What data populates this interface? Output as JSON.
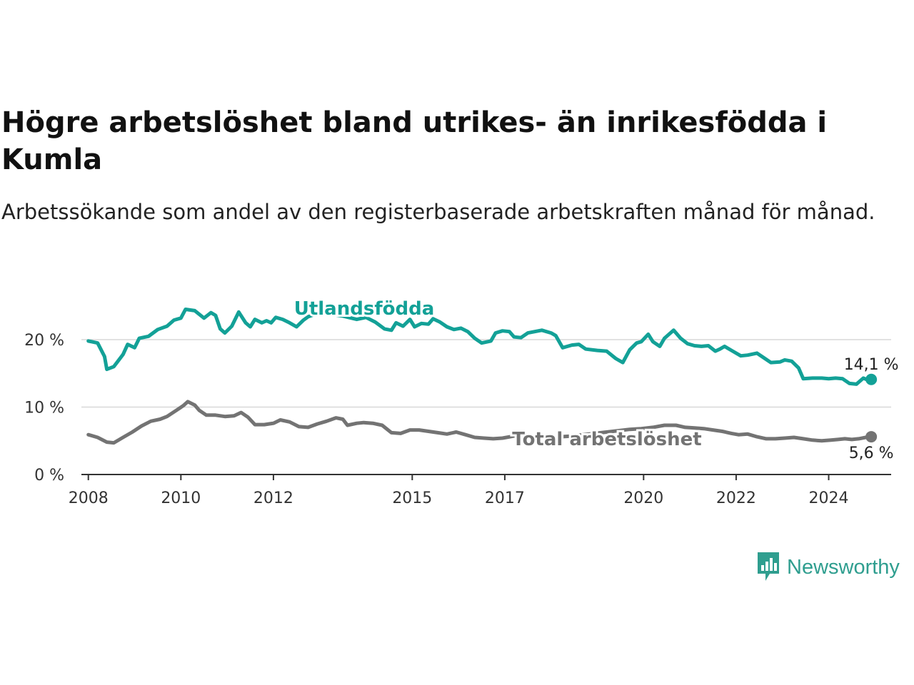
{
  "title": "Högre arbetslöshet bland utrikes- än inrikesfödda i Kumla",
  "subtitle": "Arbetssökande som andel av den registerbaserade arbetskraften månad för månad.",
  "brand": {
    "name": "Newsworthy",
    "icon": "newsworthy-logo-icon",
    "color": "#2f9e8f"
  },
  "chart_data": {
    "type": "line",
    "y_ticks": [
      "0 %",
      "10 %",
      "20 %"
    ],
    "y_tick_values": [
      0,
      10,
      20
    ],
    "ylim": [
      0,
      27
    ],
    "xlim": [
      2007.85,
      2025.35
    ],
    "x_ticks": [
      "2008",
      "2010",
      "2012",
      "2015",
      "2017",
      "2020",
      "2022",
      "2024"
    ],
    "x_tick_values": [
      2008,
      2010,
      2012,
      2015,
      2017,
      2020,
      2022,
      2024
    ],
    "grid": "horizontal",
    "series": [
      {
        "name": "Utlandsfödda",
        "color": "#13a197",
        "end_label": "14,1 %",
        "points": [
          [
            2008.0,
            19.8
          ],
          [
            2008.2,
            19.5
          ],
          [
            2008.35,
            17.5
          ],
          [
            2008.4,
            15.6
          ],
          [
            2008.55,
            16.0
          ],
          [
            2008.75,
            17.8
          ],
          [
            2008.85,
            19.3
          ],
          [
            2009.0,
            18.8
          ],
          [
            2009.1,
            20.2
          ],
          [
            2009.3,
            20.5
          ],
          [
            2009.5,
            21.5
          ],
          [
            2009.7,
            22.0
          ],
          [
            2009.85,
            22.9
          ],
          [
            2010.0,
            23.2
          ],
          [
            2010.1,
            24.5
          ],
          [
            2010.3,
            24.3
          ],
          [
            2010.5,
            23.2
          ],
          [
            2010.65,
            24.0
          ],
          [
            2010.75,
            23.6
          ],
          [
            2010.85,
            21.6
          ],
          [
            2010.95,
            21.0
          ],
          [
            2011.1,
            22.0
          ],
          [
            2011.25,
            24.1
          ],
          [
            2011.4,
            22.5
          ],
          [
            2011.5,
            21.9
          ],
          [
            2011.6,
            23.0
          ],
          [
            2011.75,
            22.5
          ],
          [
            2011.85,
            22.8
          ],
          [
            2011.95,
            22.5
          ],
          [
            2012.05,
            23.3
          ],
          [
            2012.2,
            23.0
          ],
          [
            2012.35,
            22.5
          ],
          [
            2012.5,
            21.9
          ],
          [
            2012.65,
            22.9
          ],
          [
            2012.75,
            23.4
          ],
          [
            2013.0,
            24.0
          ],
          [
            2013.5,
            23.5
          ],
          [
            2013.8,
            23.0
          ],
          [
            2014.0,
            23.3
          ],
          [
            2014.2,
            22.6
          ],
          [
            2014.4,
            21.6
          ],
          [
            2014.55,
            21.4
          ],
          [
            2014.65,
            22.5
          ],
          [
            2014.8,
            22.0
          ],
          [
            2014.95,
            23.0
          ],
          [
            2015.05,
            21.9
          ],
          [
            2015.2,
            22.4
          ],
          [
            2015.35,
            22.3
          ],
          [
            2015.45,
            23.1
          ],
          [
            2015.6,
            22.6
          ],
          [
            2015.75,
            21.9
          ],
          [
            2015.9,
            21.5
          ],
          [
            2016.05,
            21.7
          ],
          [
            2016.2,
            21.2
          ],
          [
            2016.35,
            20.2
          ],
          [
            2016.5,
            19.5
          ],
          [
            2016.7,
            19.8
          ],
          [
            2016.8,
            21.0
          ],
          [
            2016.95,
            21.3
          ],
          [
            2017.1,
            21.2
          ],
          [
            2017.2,
            20.4
          ],
          [
            2017.35,
            20.3
          ],
          [
            2017.5,
            21.0
          ],
          [
            2017.65,
            21.2
          ],
          [
            2017.8,
            21.4
          ],
          [
            2018.0,
            21.0
          ],
          [
            2018.1,
            20.6
          ],
          [
            2018.25,
            18.8
          ],
          [
            2018.45,
            19.2
          ],
          [
            2018.6,
            19.3
          ],
          [
            2018.75,
            18.6
          ],
          [
            2019.0,
            18.4
          ],
          [
            2019.2,
            18.3
          ],
          [
            2019.4,
            17.2
          ],
          [
            2019.55,
            16.6
          ],
          [
            2019.7,
            18.5
          ],
          [
            2019.85,
            19.5
          ],
          [
            2019.95,
            19.7
          ],
          [
            2020.1,
            20.8
          ],
          [
            2020.2,
            19.7
          ],
          [
            2020.35,
            19.0
          ],
          [
            2020.45,
            20.2
          ],
          [
            2020.55,
            20.8
          ],
          [
            2020.65,
            21.4
          ],
          [
            2020.8,
            20.2
          ],
          [
            2020.95,
            19.4
          ],
          [
            2021.1,
            19.1
          ],
          [
            2021.25,
            19.0
          ],
          [
            2021.4,
            19.1
          ],
          [
            2021.55,
            18.3
          ],
          [
            2021.65,
            18.6
          ],
          [
            2021.75,
            19.0
          ],
          [
            2021.9,
            18.4
          ],
          [
            2022.1,
            17.6
          ],
          [
            2022.25,
            17.7
          ],
          [
            2022.45,
            18.0
          ],
          [
            2022.6,
            17.3
          ],
          [
            2022.75,
            16.6
          ],
          [
            2022.95,
            16.7
          ],
          [
            2023.05,
            17.0
          ],
          [
            2023.2,
            16.8
          ],
          [
            2023.35,
            15.8
          ],
          [
            2023.45,
            14.2
          ],
          [
            2023.65,
            14.3
          ],
          [
            2023.85,
            14.3
          ],
          [
            2024.0,
            14.2
          ],
          [
            2024.15,
            14.3
          ],
          [
            2024.3,
            14.2
          ],
          [
            2024.45,
            13.5
          ],
          [
            2024.6,
            13.4
          ],
          [
            2024.75,
            14.3
          ],
          [
            2024.85,
            14.0
          ],
          [
            2024.92,
            14.1
          ]
        ]
      },
      {
        "name": "Total arbetslöshet",
        "color": "#737373",
        "end_label": "5,6 %",
        "points": [
          [
            2008.0,
            5.9
          ],
          [
            2008.2,
            5.5
          ],
          [
            2008.4,
            4.8
          ],
          [
            2008.55,
            4.7
          ],
          [
            2008.75,
            5.5
          ],
          [
            2008.95,
            6.3
          ],
          [
            2009.15,
            7.2
          ],
          [
            2009.35,
            7.9
          ],
          [
            2009.55,
            8.2
          ],
          [
            2009.7,
            8.6
          ],
          [
            2009.9,
            9.5
          ],
          [
            2010.05,
            10.2
          ],
          [
            2010.15,
            10.8
          ],
          [
            2010.3,
            10.3
          ],
          [
            2010.4,
            9.5
          ],
          [
            2010.55,
            8.8
          ],
          [
            2010.75,
            8.8
          ],
          [
            2010.95,
            8.6
          ],
          [
            2011.15,
            8.7
          ],
          [
            2011.3,
            9.2
          ],
          [
            2011.45,
            8.5
          ],
          [
            2011.6,
            7.4
          ],
          [
            2011.8,
            7.4
          ],
          [
            2012.0,
            7.6
          ],
          [
            2012.15,
            8.1
          ],
          [
            2012.35,
            7.8
          ],
          [
            2012.55,
            7.1
          ],
          [
            2012.75,
            7.0
          ],
          [
            2012.95,
            7.5
          ],
          [
            2013.15,
            7.9
          ],
          [
            2013.35,
            8.4
          ],
          [
            2013.5,
            8.2
          ],
          [
            2013.6,
            7.3
          ],
          [
            2013.8,
            7.6
          ],
          [
            2013.95,
            7.7
          ],
          [
            2014.15,
            7.6
          ],
          [
            2014.35,
            7.3
          ],
          [
            2014.55,
            6.2
          ],
          [
            2014.75,
            6.1
          ],
          [
            2014.95,
            6.6
          ],
          [
            2015.15,
            6.6
          ],
          [
            2015.35,
            6.4
          ],
          [
            2015.55,
            6.2
          ],
          [
            2015.75,
            6.0
          ],
          [
            2015.95,
            6.3
          ],
          [
            2016.15,
            5.9
          ],
          [
            2016.35,
            5.5
          ],
          [
            2016.55,
            5.4
          ],
          [
            2016.75,
            5.3
          ],
          [
            2016.95,
            5.4
          ],
          [
            2017.2,
            5.7
          ],
          [
            2017.45,
            5.8
          ],
          [
            2017.7,
            5.6
          ],
          [
            2017.95,
            5.5
          ],
          [
            2018.2,
            5.6
          ],
          [
            2018.45,
            5.7
          ],
          [
            2018.7,
            5.9
          ],
          [
            2018.95,
            6.1
          ],
          [
            2019.2,
            6.3
          ],
          [
            2019.45,
            6.5
          ],
          [
            2019.7,
            6.7
          ],
          [
            2019.95,
            6.8
          ],
          [
            2020.2,
            7.0
          ],
          [
            2020.45,
            7.3
          ],
          [
            2020.7,
            7.3
          ],
          [
            2020.9,
            7.0
          ],
          [
            2021.1,
            6.9
          ],
          [
            2021.3,
            6.8
          ],
          [
            2021.5,
            6.6
          ],
          [
            2021.7,
            6.4
          ],
          [
            2021.9,
            6.1
          ],
          [
            2022.05,
            5.9
          ],
          [
            2022.25,
            6.0
          ],
          [
            2022.45,
            5.6
          ],
          [
            2022.65,
            5.3
          ],
          [
            2022.85,
            5.3
          ],
          [
            2023.05,
            5.4
          ],
          [
            2023.25,
            5.5
          ],
          [
            2023.45,
            5.3
          ],
          [
            2023.65,
            5.1
          ],
          [
            2023.85,
            5.0
          ],
          [
            2024.05,
            5.1
          ],
          [
            2024.2,
            5.2
          ],
          [
            2024.35,
            5.3
          ],
          [
            2024.5,
            5.2
          ],
          [
            2024.65,
            5.3
          ],
          [
            2024.8,
            5.5
          ],
          [
            2024.92,
            5.6
          ]
        ]
      }
    ]
  }
}
